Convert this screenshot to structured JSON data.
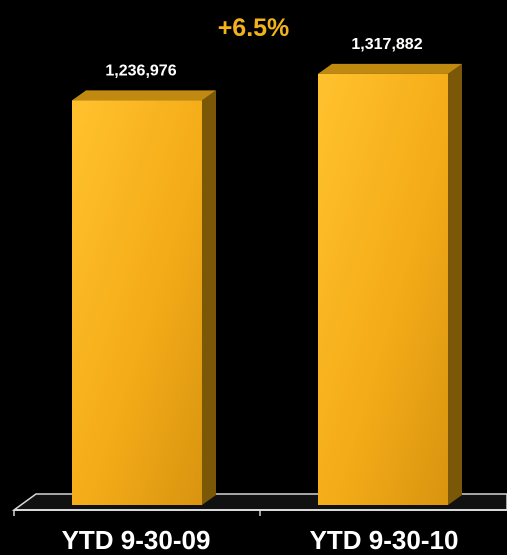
{
  "chart_data": {
    "type": "bar",
    "title": "",
    "annotation": "+6.5%",
    "categories": [
      "YTD 9-30-09",
      "YTD 9-30-10"
    ],
    "values": [
      1236976,
      1317882
    ],
    "value_labels": [
      "1,236,976",
      "1,317,882"
    ],
    "xlabel": "",
    "ylabel": "",
    "ylim": [
      0,
      1400000
    ],
    "grid": false,
    "legend": "none",
    "colors": {
      "background": "#000000",
      "bar_front": "#f6b320",
      "bar_side": "#7a5808",
      "bar_top": "#c08a10",
      "annotation": "#f2b21c",
      "text": "#ffffff",
      "floor_line": "#d8d8d8"
    }
  }
}
